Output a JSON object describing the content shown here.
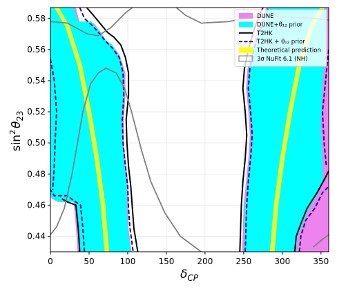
{
  "chart_data": {
    "type": "line",
    "title": "",
    "xlabel": "δ_CP",
    "ylabel": "sin²θ₂₃",
    "xlim": [
      0,
      360
    ],
    "ylim": [
      0.43,
      0.587
    ],
    "x_ticks": [
      0,
      50,
      100,
      150,
      200,
      250,
      300,
      350
    ],
    "y_ticks": [
      0.44,
      0.46,
      0.48,
      0.5,
      0.52,
      0.54,
      0.56,
      0.58
    ],
    "grid": true,
    "legend_position": "top-right",
    "legend": [
      {
        "name": "DUNE",
        "kind": "patch",
        "color": "#ee82ee"
      },
      {
        "name": "DUNE+θ₁₂ prior",
        "kind": "patch",
        "color": "#00ffff"
      },
      {
        "name": "T2HK",
        "kind": "solid",
        "color": "#000000"
      },
      {
        "name": "T2HK + θ₁₂ prior",
        "kind": "dashed",
        "color": "#2b0a7a"
      },
      {
        "name": "Theoretical prediction",
        "kind": "patch",
        "color": "#ffff00"
      },
      {
        "name": "3σ NuFit 6.1 (NH)",
        "kind": "outline",
        "color": "#808080"
      }
    ],
    "series": [
      {
        "name": "DUNE",
        "style": "fill",
        "color": "#ee82ee",
        "regions": [
          [
            [
              0,
              0.587
            ],
            [
              33,
              0.587
            ],
            [
              38,
              0.577
            ],
            [
              56,
              0.577
            ],
            [
              64,
              0.572
            ],
            [
              72,
              0.566
            ],
            [
              80,
              0.563
            ],
            [
              90,
              0.556
            ],
            [
              97,
              0.545
            ],
            [
              97,
              0.53
            ],
            [
              95,
              0.515
            ],
            [
              95,
              0.5
            ],
            [
              98,
              0.485
            ],
            [
              101,
              0.472
            ],
            [
              101,
              0.458
            ],
            [
              101,
              0.445
            ],
            [
              105,
              0.43
            ],
            [
              35,
              0.43
            ],
            [
              33,
              0.446
            ],
            [
              30,
              0.462
            ],
            [
              10,
              0.462
            ],
            [
              2,
              0.464
            ],
            [
              0,
              0.466
            ]
          ],
          [
            [
              248,
              0.43
            ],
            [
              249,
              0.445
            ],
            [
              250,
              0.46
            ],
            [
              253,
              0.475
            ],
            [
              256,
              0.49
            ],
            [
              258,
              0.505
            ],
            [
              256,
              0.52
            ],
            [
              253,
              0.535
            ],
            [
              255,
              0.548
            ],
            [
              260,
              0.56
            ],
            [
              268,
              0.572
            ],
            [
              275,
              0.582
            ],
            [
              279,
              0.587
            ],
            [
              360,
              0.587
            ],
            [
              360,
              0.43
            ]
          ]
        ]
      },
      {
        "name": "DUNE+θ₁₂ prior",
        "style": "fill",
        "color": "#00ffff",
        "regions": [
          [
            [
              0,
              0.587
            ],
            [
              30,
              0.587
            ],
            [
              36,
              0.578
            ],
            [
              53,
              0.578
            ],
            [
              63,
              0.572
            ],
            [
              72,
              0.566
            ],
            [
              80,
              0.563
            ],
            [
              90,
              0.555
            ],
            [
              95,
              0.545
            ],
            [
              95,
              0.53
            ],
            [
              92,
              0.515
            ],
            [
              93,
              0.5
            ],
            [
              96,
              0.485
            ],
            [
              99,
              0.472
            ],
            [
              99,
              0.458
            ],
            [
              100,
              0.445
            ],
            [
              104,
              0.43
            ],
            [
              37,
              0.43
            ],
            [
              35,
              0.446
            ],
            [
              32,
              0.462
            ],
            [
              12,
              0.462
            ],
            [
              3,
              0.464
            ],
            [
              0,
              0.466
            ]
          ],
          [
            [
              250,
              0.43
            ],
            [
              251,
              0.445
            ],
            [
              252,
              0.46
            ],
            [
              255,
              0.475
            ],
            [
              258,
              0.49
            ],
            [
              260,
              0.505
            ],
            [
              258,
              0.52
            ],
            [
              255,
              0.535
            ],
            [
              257,
              0.548
            ],
            [
              262,
              0.56
            ],
            [
              270,
              0.572
            ],
            [
              277,
              0.582
            ],
            [
              280,
              0.587
            ],
            [
              357,
              0.587
            ],
            [
              356,
              0.56
            ],
            [
              352,
              0.535
            ],
            [
              350,
              0.51
            ],
            [
              352,
              0.49
            ],
            [
              353,
              0.476
            ],
            [
              345,
              0.466
            ],
            [
              333,
              0.456
            ],
            [
              326,
              0.447
            ],
            [
              320,
              0.44
            ],
            [
              318,
              0.43
            ]
          ]
        ]
      },
      {
        "name": "T2HK",
        "style": "solid",
        "color": "#000000",
        "paths": [
          [
            [
              38,
              0.43
            ],
            [
              36,
              0.445
            ],
            [
              33,
              0.46
            ],
            [
              22,
              0.462
            ],
            [
              15,
              0.464
            ]
          ],
          [
            [
              47,
              0.587
            ],
            [
              54,
              0.583
            ],
            [
              64,
              0.577
            ],
            [
              74,
              0.571
            ],
            [
              82,
              0.568
            ],
            [
              91,
              0.563
            ],
            [
              97,
              0.555
            ],
            [
              101,
              0.545
            ],
            [
              101,
              0.53
            ],
            [
              98,
              0.515
            ],
            [
              99,
              0.5
            ],
            [
              101,
              0.485
            ],
            [
              104,
              0.472
            ],
            [
              106,
              0.458
            ],
            [
              108,
              0.445
            ],
            [
              113,
              0.43
            ]
          ],
          [
            [
              245,
              0.43
            ],
            [
              246,
              0.445
            ],
            [
              247,
              0.46
            ],
            [
              249,
              0.475
            ],
            [
              252,
              0.49
            ],
            [
              254,
              0.505
            ],
            [
              252,
              0.52
            ],
            [
              249,
              0.535
            ],
            [
              251,
              0.548
            ],
            [
              256,
              0.56
            ],
            [
              263,
              0.572
            ],
            [
              270,
              0.582
            ],
            [
              275,
              0.587
            ]
          ],
          [
            [
              316,
              0.43
            ],
            [
              318,
              0.44
            ],
            [
              324,
              0.448
            ],
            [
              332,
              0.458
            ],
            [
              345,
              0.468
            ],
            [
              356,
              0.478
            ],
            [
              360,
              0.482
            ]
          ]
        ]
      },
      {
        "name": "T2HK + θ₁₂ prior",
        "style": "dashed",
        "color": "#2b0a7a",
        "paths": [
          [
            [
              44,
              0.43
            ],
            [
              42,
              0.445
            ],
            [
              39,
              0.46
            ],
            [
              30,
              0.463
            ],
            [
              22,
              0.466
            ],
            [
              5,
              0.466
            ],
            [
              0,
              0.47
            ]
          ],
          [
            [
              0,
              0.554
            ],
            [
              5,
              0.54
            ],
            [
              8,
              0.52
            ],
            [
              6,
              0.5
            ],
            [
              5,
              0.485
            ],
            [
              3,
              0.47
            ]
          ],
          [
            [
              38,
              0.587
            ],
            [
              44,
              0.58
            ],
            [
              55,
              0.575
            ],
            [
              64,
              0.57
            ],
            [
              72,
              0.565
            ],
            [
              80,
              0.561
            ],
            [
              89,
              0.555
            ],
            [
              94,
              0.545
            ],
            [
              95,
              0.53
            ],
            [
              93,
              0.515
            ],
            [
              94,
              0.5
            ],
            [
              97,
              0.485
            ],
            [
              100,
              0.472
            ],
            [
              101,
              0.458
            ],
            [
              103,
              0.445
            ],
            [
              107,
              0.43
            ]
          ],
          [
            [
              252,
              0.43
            ],
            [
              253,
              0.445
            ],
            [
              254,
              0.46
            ],
            [
              256,
              0.475
            ],
            [
              259,
              0.49
            ],
            [
              261,
              0.505
            ],
            [
              259,
              0.52
            ],
            [
              256,
              0.535
            ],
            [
              258,
              0.548
            ],
            [
              263,
              0.56
            ],
            [
              271,
              0.572
            ],
            [
              278,
              0.582
            ],
            [
              282,
              0.587
            ]
          ],
          [
            [
              322,
              0.43
            ],
            [
              324,
              0.44
            ],
            [
              330,
              0.45
            ],
            [
              342,
              0.458
            ],
            [
              352,
              0.468
            ],
            [
              360,
              0.472
            ]
          ],
          [
            [
              360,
              0.56
            ],
            [
              356,
              0.54
            ],
            [
              352,
              0.52
            ],
            [
              354,
              0.5
            ],
            [
              357,
              0.485
            ]
          ]
        ]
      },
      {
        "name": "Theoretical prediction",
        "style": "band",
        "color": "#e8f92a",
        "bands": [
          {
            "center": [
              [
                73,
                0.43
              ],
              [
                68,
                0.46
              ],
              [
                60,
                0.49
              ],
              [
                50,
                0.52
              ],
              [
                38,
                0.55
              ],
              [
                22,
                0.575
              ],
              [
                8,
                0.587
              ]
            ],
            "width_x": 6
          },
          {
            "center": [
              [
                287,
                0.43
              ],
              [
                292,
                0.46
              ],
              [
                300,
                0.49
              ],
              [
                310,
                0.52
              ],
              [
                322,
                0.55
              ],
              [
                338,
                0.575
              ],
              [
                352,
                0.587
              ]
            ],
            "width_x": 6
          }
        ]
      },
      {
        "name": "3σ NuFit 6.1 (NH)",
        "style": "solid",
        "color": "#808080",
        "paths": [
          [
            [
              0,
              0.441
            ],
            [
              8,
              0.446
            ],
            [
              18,
              0.458
            ],
            [
              28,
              0.48
            ],
            [
              35,
              0.5
            ],
            [
              42,
              0.52
            ],
            [
              52,
              0.538
            ],
            [
              62,
              0.545
            ],
            [
              72,
              0.548
            ],
            [
              85,
              0.545
            ],
            [
              96,
              0.535
            ],
            [
              105,
              0.52
            ],
            [
              118,
              0.495
            ],
            [
              130,
              0.475
            ],
            [
              148,
              0.455
            ],
            [
              168,
              0.44
            ],
            [
              195,
              0.43
            ]
          ],
          [
            [
              0,
              0.578
            ],
            [
              22,
              0.577
            ],
            [
              48,
              0.57
            ],
            [
              62,
              0.569
            ],
            [
              78,
              0.574
            ],
            [
              98,
              0.584
            ],
            [
              106,
              0.587
            ]
          ],
          [
            [
              163,
              0.587
            ],
            [
              175,
              0.582
            ],
            [
              195,
              0.577
            ],
            [
              230,
              0.578
            ],
            [
              265,
              0.581
            ],
            [
              310,
              0.581
            ],
            [
              340,
              0.58
            ],
            [
              360,
              0.579
            ]
          ],
          [
            [
              340,
              0.433
            ],
            [
              352,
              0.438
            ],
            [
              360,
              0.441
            ]
          ]
        ]
      }
    ]
  }
}
